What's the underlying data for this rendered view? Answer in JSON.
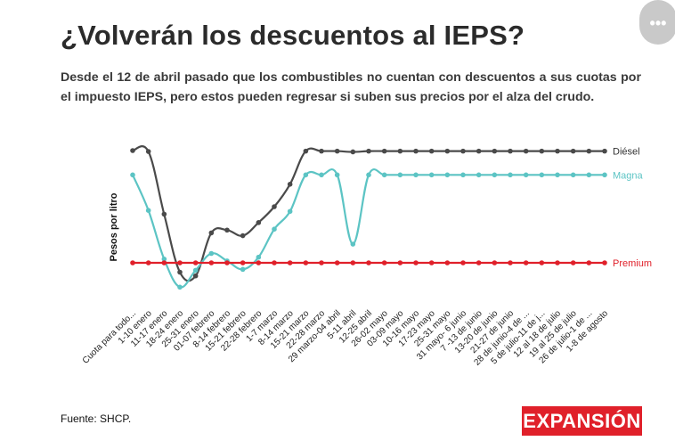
{
  "header": {
    "title": "¿Volverán los descuentos al IEPS?",
    "subtitle": "Desde el 12 de abril pasado que los combustibles no cuentan con descuentos a sus cuotas por el impuesto IEPS, pero estos pueden regresar si suben sus precios por el alza del crudo."
  },
  "menu": {
    "label": "•••",
    "icon": "more-dots-icon"
  },
  "footer": {
    "source": "Fuente: SHCP.",
    "logo_text": "EXPANSIÓN"
  },
  "colors": {
    "diesel": "#4a4a4a",
    "magna": "#5cc4c4",
    "premium": "#e0202a",
    "logo": "#e0202a"
  },
  "chart_data": {
    "type": "line",
    "title": "¿Volverán los descuentos al IEPS?",
    "xlabel": "",
    "ylabel": "Pesos por litro",
    "ylim": [
      0,
      6.4
    ],
    "grid": false,
    "legend": "right-end labels",
    "categories": [
      "Cuota para todo...",
      "1-10 enero",
      "11-17 enero",
      "18-24 enero",
      "25-31 enero",
      "01-07 febrero",
      "8-14 febrero",
      "15-21 febrero",
      "22-28 febrero",
      "1-7 marzo",
      "8-14 marzo",
      "15-21 marzo",
      "22-28 marzo",
      "29 marzo-04 abril",
      "5-11 abril",
      "12-25 abril",
      "26-02 mayo",
      "03-09 mayo",
      "10-16 mayo",
      "17-23 mayo",
      "25-31 mayo",
      "31 mayo- 6 junio",
      "7 -13 de junio",
      "13-20 de junio",
      "21-27 de junio",
      "28 de junio-4 de ...",
      "5 de julio-11 de j...",
      "12 al 18 de julio",
      "19 al 25 de julio",
      "26 de julio-1 de ...",
      "1-8 de agosto"
    ],
    "series": [
      {
        "name": "Diésel",
        "color": "#4a4a4a",
        "values": [
          6.0,
          5.95,
          2.6,
          -0.5,
          -0.7,
          1.6,
          1.75,
          1.45,
          2.15,
          3.0,
          4.2,
          5.97,
          5.97,
          5.97,
          5.93,
          5.97,
          5.97,
          5.97,
          5.97,
          5.97,
          5.97,
          5.97,
          5.97,
          5.97,
          5.97,
          5.97,
          5.97,
          5.97,
          5.97,
          5.97,
          5.97
        ]
      },
      {
        "name": "Magna",
        "color": "#5cc4c4",
        "values": [
          4.7,
          2.8,
          0.2,
          -1.3,
          -0.4,
          0.5,
          0.1,
          -0.35,
          0.3,
          1.8,
          2.75,
          4.7,
          4.7,
          4.7,
          1.0,
          4.7,
          4.7,
          4.7,
          4.7,
          4.7,
          4.7,
          4.7,
          4.7,
          4.7,
          4.7,
          4.7,
          4.7,
          4.7,
          4.7,
          4.7,
          4.7
        ]
      },
      {
        "name": "Premium",
        "color": "#e0202a",
        "values": [
          0,
          0,
          0,
          0,
          0,
          0,
          0,
          0,
          0,
          0,
          0,
          0,
          0,
          0,
          0,
          0,
          0,
          0,
          0,
          0,
          0,
          0,
          0,
          0,
          0,
          0,
          0,
          0,
          0,
          0,
          0
        ]
      }
    ]
  }
}
